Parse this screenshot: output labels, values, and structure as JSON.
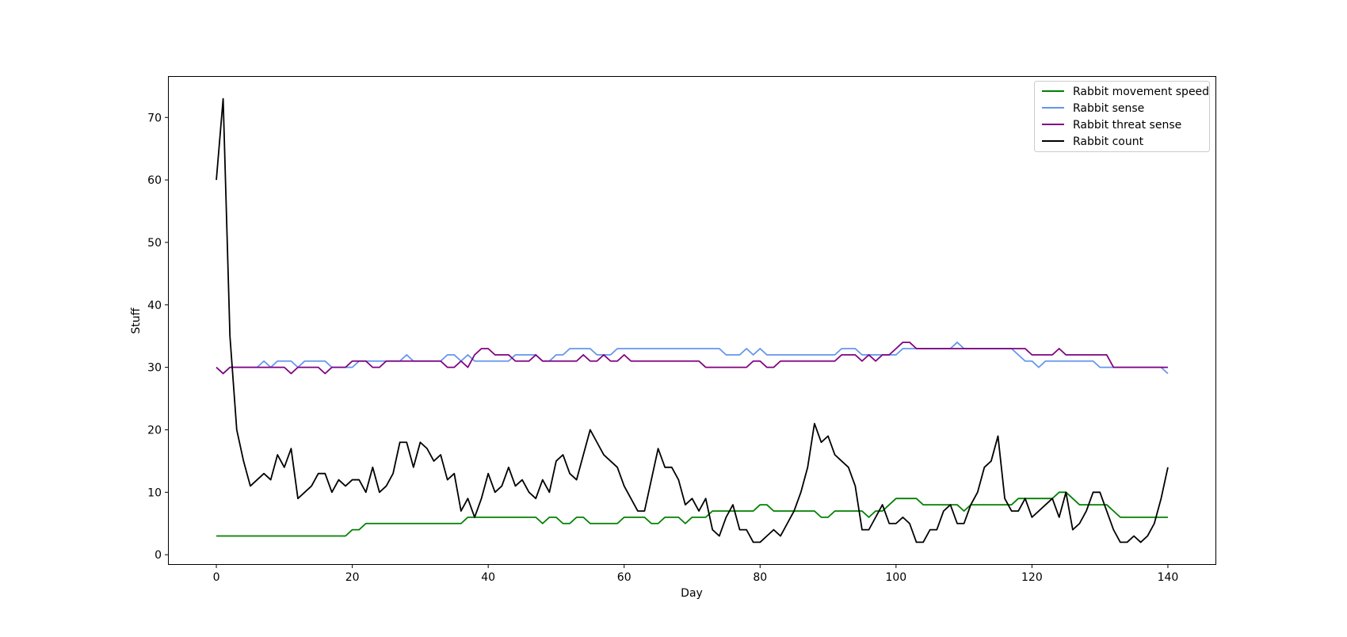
{
  "chart_data": {
    "type": "line",
    "title": "",
    "xlabel": "Day",
    "ylabel": "Stuff",
    "xlim": [
      -7,
      147
    ],
    "ylim": [
      -1.5,
      76.5
    ],
    "xticks": [
      0,
      20,
      40,
      60,
      80,
      100,
      120,
      140
    ],
    "yticks": [
      0,
      10,
      20,
      30,
      40,
      50,
      60,
      70
    ],
    "grid": false,
    "legend_position": "top-right",
    "x": [
      0,
      1,
      2,
      3,
      4,
      5,
      6,
      7,
      8,
      9,
      10,
      11,
      12,
      13,
      14,
      15,
      16,
      17,
      18,
      19,
      20,
      21,
      22,
      23,
      24,
      25,
      26,
      27,
      28,
      29,
      30,
      31,
      32,
      33,
      34,
      35,
      36,
      37,
      38,
      39,
      40,
      41,
      42,
      43,
      44,
      45,
      46,
      47,
      48,
      49,
      50,
      51,
      52,
      53,
      54,
      55,
      56,
      57,
      58,
      59,
      60,
      61,
      62,
      63,
      64,
      65,
      66,
      67,
      68,
      69,
      70,
      71,
      72,
      73,
      74,
      75,
      76,
      77,
      78,
      79,
      80,
      81,
      82,
      83,
      84,
      85,
      86,
      87,
      88,
      89,
      90,
      91,
      92,
      93,
      94,
      95,
      96,
      97,
      98,
      99,
      100,
      101,
      102,
      103,
      104,
      105,
      106,
      107,
      108,
      109,
      110,
      111,
      112,
      113,
      114,
      115,
      116,
      117,
      118,
      119,
      120,
      121,
      122,
      123,
      124,
      125,
      126,
      127,
      128,
      129,
      130,
      131,
      132,
      133,
      134,
      135,
      136,
      137,
      138,
      139,
      140
    ],
    "series": [
      {
        "name": "Rabbit movement speed",
        "color": "#008000",
        "values": [
          3,
          3,
          3,
          3,
          3,
          3,
          3,
          3,
          3,
          3,
          3,
          3,
          3,
          3,
          3,
          3,
          3,
          3,
          3,
          3,
          4,
          4,
          5,
          5,
          5,
          5,
          5,
          5,
          5,
          5,
          5,
          5,
          5,
          5,
          5,
          5,
          5,
          6,
          6,
          6,
          6,
          6,
          6,
          6,
          6,
          6,
          6,
          6,
          5,
          6,
          6,
          5,
          5,
          6,
          6,
          5,
          5,
          5,
          5,
          5,
          6,
          6,
          6,
          6,
          5,
          5,
          6,
          6,
          6,
          5,
          6,
          6,
          6,
          7,
          7,
          7,
          7,
          7,
          7,
          7,
          8,
          8,
          7,
          7,
          7,
          7,
          7,
          7,
          7,
          6,
          6,
          7,
          7,
          7,
          7,
          7,
          6,
          7,
          7,
          8,
          9,
          9,
          9,
          9,
          8,
          8,
          8,
          8,
          8,
          8,
          7,
          8,
          8,
          8,
          8,
          8,
          8,
          8,
          9,
          9,
          9,
          9,
          9,
          9,
          10,
          10,
          9,
          8,
          8,
          8,
          8,
          8,
          7,
          6,
          6,
          6,
          6,
          6,
          6,
          6,
          6
        ]
      },
      {
        "name": "Rabbit sense",
        "color": "#6495ed",
        "values": [
          30,
          29,
          30,
          30,
          30,
          30,
          30,
          31,
          30,
          31,
          31,
          31,
          30,
          31,
          31,
          31,
          31,
          30,
          30,
          30,
          30,
          31,
          31,
          31,
          31,
          31,
          31,
          31,
          32,
          31,
          31,
          31,
          31,
          31,
          32,
          32,
          31,
          32,
          31,
          31,
          31,
          31,
          31,
          31,
          32,
          32,
          32,
          32,
          31,
          31,
          32,
          32,
          33,
          33,
          33,
          33,
          32,
          32,
          32,
          33,
          33,
          33,
          33,
          33,
          33,
          33,
          33,
          33,
          33,
          33,
          33,
          33,
          33,
          33,
          33,
          32,
          32,
          32,
          33,
          32,
          33,
          32,
          32,
          32,
          32,
          32,
          32,
          32,
          32,
          32,
          32,
          32,
          33,
          33,
          33,
          32,
          32,
          32,
          32,
          32,
          32,
          33,
          33,
          33,
          33,
          33,
          33,
          33,
          33,
          34,
          33,
          33,
          33,
          33,
          33,
          33,
          33,
          33,
          32,
          31,
          31,
          30,
          31,
          31,
          31,
          31,
          31,
          31,
          31,
          31,
          30,
          30,
          30,
          30,
          30,
          30,
          30,
          30,
          30,
          30,
          29
        ]
      },
      {
        "name": "Rabbit threat sense",
        "color": "#800080",
        "values": [
          30,
          29,
          30,
          30,
          30,
          30,
          30,
          30,
          30,
          30,
          30,
          29,
          30,
          30,
          30,
          30,
          29,
          30,
          30,
          30,
          31,
          31,
          31,
          30,
          30,
          31,
          31,
          31,
          31,
          31,
          31,
          31,
          31,
          31,
          30,
          30,
          31,
          30,
          32,
          33,
          33,
          32,
          32,
          32,
          31,
          31,
          31,
          32,
          31,
          31,
          31,
          31,
          31,
          31,
          32,
          31,
          31,
          32,
          31,
          31,
          32,
          31,
          31,
          31,
          31,
          31,
          31,
          31,
          31,
          31,
          31,
          31,
          30,
          30,
          30,
          30,
          30,
          30,
          30,
          31,
          31,
          30,
          30,
          31,
          31,
          31,
          31,
          31,
          31,
          31,
          31,
          31,
          32,
          32,
          32,
          31,
          32,
          31,
          32,
          32,
          33,
          34,
          34,
          33,
          33,
          33,
          33,
          33,
          33,
          33,
          33,
          33,
          33,
          33,
          33,
          33,
          33,
          33,
          33,
          33,
          32,
          32,
          32,
          32,
          33,
          32,
          32,
          32,
          32,
          32,
          32,
          32,
          30,
          30,
          30,
          30,
          30,
          30,
          30,
          30,
          30
        ]
      },
      {
        "name": "Rabbit count",
        "color": "#000000",
        "values": [
          60,
          73,
          35,
          20,
          15,
          11,
          12,
          13,
          12,
          16,
          14,
          17,
          9,
          10,
          11,
          13,
          13,
          10,
          12,
          11,
          12,
          12,
          10,
          14,
          10,
          11,
          13,
          18,
          18,
          14,
          18,
          17,
          15,
          16,
          12,
          13,
          7,
          9,
          6,
          9,
          13,
          10,
          11,
          14,
          11,
          12,
          10,
          9,
          12,
          10,
          15,
          16,
          13,
          12,
          16,
          20,
          18,
          16,
          15,
          14,
          11,
          9,
          7,
          7,
          12,
          17,
          14,
          14,
          12,
          8,
          9,
          7,
          9,
          4,
          3,
          6,
          8,
          4,
          4,
          2,
          2,
          3,
          4,
          3,
          5,
          7,
          10,
          14,
          21,
          18,
          19,
          16,
          15,
          14,
          11,
          4,
          4,
          6,
          8,
          5,
          5,
          6,
          5,
          2,
          2,
          4,
          4,
          7,
          8,
          5,
          5,
          8,
          10,
          14,
          15,
          19,
          9,
          7,
          7,
          9,
          6,
          7,
          8,
          9,
          6,
          10,
          4,
          5,
          7,
          10,
          10,
          7,
          4,
          2,
          2,
          3,
          2,
          3,
          5,
          9,
          14
        ]
      }
    ]
  }
}
